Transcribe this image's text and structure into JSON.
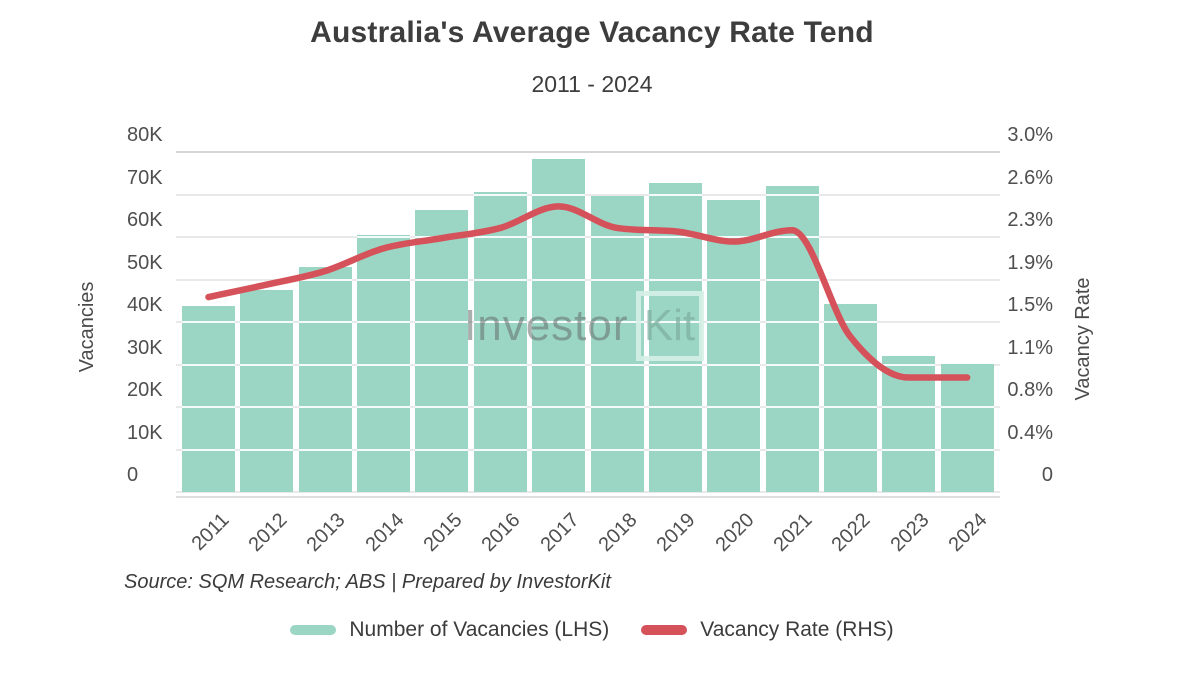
{
  "title": "Australia's Average Vacancy Rate Tend",
  "subtitle": "2011 - 2024",
  "source": "Source: SQM Research; ABS | Prepared by InvestorKit",
  "watermark": {
    "part1": "Investor",
    "part2": "Kit"
  },
  "legend": [
    {
      "label": "Number of Vacancies (LHS)",
      "color": "#9bd6c5",
      "type": "bar"
    },
    {
      "label": "Vacancy Rate (RHS)",
      "color": "#d5525b",
      "type": "line"
    }
  ],
  "chart_data": {
    "type": "combo-bar-line",
    "categories": [
      "2011",
      "2012",
      "2013",
      "2014",
      "2015",
      "2016",
      "2017",
      "2018",
      "2019",
      "2020",
      "2021",
      "2022",
      "2023",
      "2024"
    ],
    "series": [
      {
        "name": "Number of Vacancies (LHS)",
        "type": "bar",
        "axis": "left",
        "values": [
          43800,
          47500,
          52900,
          60500,
          66300,
          70600,
          78400,
          69600,
          72800,
          68600,
          71900,
          44300,
          31900,
          30100
        ]
      },
      {
        "name": "Vacancy Rate (RHS)",
        "type": "line",
        "axis": "right",
        "values": [
          1.72,
          1.83,
          1.95,
          2.15,
          2.24,
          2.33,
          2.52,
          2.33,
          2.3,
          2.21,
          2.31,
          1.37,
          1.01,
          1.01
        ]
      }
    ],
    "left_axis": {
      "label": "Vacancies",
      "max": 80000,
      "min": 0,
      "ticks": [
        {
          "label": "80K",
          "value": 80000
        },
        {
          "label": "70K",
          "value": 70000
        },
        {
          "label": "60K",
          "value": 60000
        },
        {
          "label": "50K",
          "value": 50000
        },
        {
          "label": "40K",
          "value": 40000
        },
        {
          "label": "30K",
          "value": 30000
        },
        {
          "label": "20K",
          "value": 20000
        },
        {
          "label": "10K",
          "value": 10000
        },
        {
          "label": "0",
          "value": 0
        }
      ]
    },
    "right_axis": {
      "label": "Vacancy Rate",
      "max": 3.0,
      "min": 0,
      "ticks": [
        {
          "label": "3.0%",
          "value": 3.0
        },
        {
          "label": "2.6%",
          "value": 2.625
        },
        {
          "label": "2.3%",
          "value": 2.25
        },
        {
          "label": "1.9%",
          "value": 1.875
        },
        {
          "label": "1.5%",
          "value": 1.5
        },
        {
          "label": "1.1%",
          "value": 1.125
        },
        {
          "label": "0.8%",
          "value": 0.75
        },
        {
          "label": "0.4%",
          "value": 0.375
        },
        {
          "label": "0",
          "value": 0
        }
      ]
    },
    "grid": true,
    "legend_position": "bottom"
  },
  "colors": {
    "bar": "#9bd6c5",
    "line": "#d5525b",
    "title_text": "#3d3d3d",
    "axis_text": "#4f4f4f",
    "grid": "#e9e9e9",
    "grid_top": "#d6d6d6",
    "axis_line": "#dedede",
    "watermark_gray": "rgba(100,110,106,0.55)",
    "watermark_teal": "rgba(125,175,158,0.75)",
    "watermark_border": "rgba(214,240,230,0.9)"
  }
}
